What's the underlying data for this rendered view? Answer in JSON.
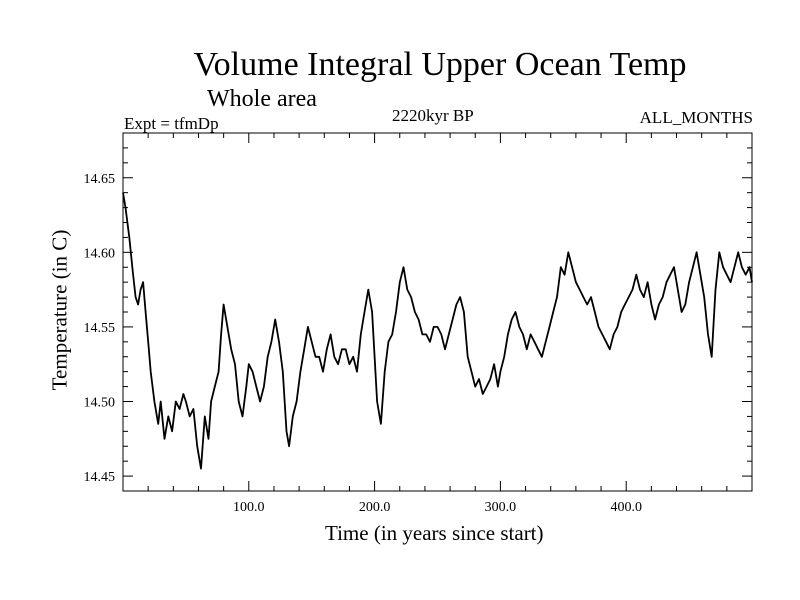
{
  "chart_data": {
    "type": "line",
    "title": "Volume Integral Upper Ocean Temp",
    "subtitle": "Whole area",
    "left_note": "Expt = tfmDp",
    "center_note": "2220kyr BP",
    "right_note": "ALL_MONTHS",
    "xlabel": "Time (in years since start)",
    "ylabel": "Temperature (in C)",
    "xlim": [
      0,
      500
    ],
    "ylim": [
      14.44,
      14.68
    ],
    "x_tick_labels": [
      "100.0",
      "200.0",
      "300.0",
      "400.0"
    ],
    "y_tick_labels": [
      "14.45",
      "14.50",
      "14.55",
      "14.60",
      "14.65"
    ],
    "series": [
      {
        "name": "Temperature",
        "x": [
          0,
          2,
          5,
          8,
          10,
          12,
          14,
          16,
          18,
          20,
          22,
          25,
          28,
          30,
          33,
          36,
          39,
          42,
          45,
          48,
          50,
          53,
          56,
          59,
          62,
          65,
          68,
          70,
          73,
          76,
          78,
          80,
          83,
          86,
          89,
          92,
          95,
          98,
          100,
          103,
          106,
          109,
          112,
          115,
          118,
          121,
          124,
          127,
          130,
          132,
          135,
          138,
          141,
          144,
          147,
          150,
          153,
          156,
          159,
          162,
          165,
          168,
          171,
          174,
          177,
          180,
          183,
          186,
          189,
          192,
          195,
          198,
          200,
          202,
          205,
          208,
          211,
          214,
          217,
          220,
          223,
          226,
          229,
          232,
          235,
          238,
          241,
          244,
          247,
          250,
          253,
          256,
          259,
          262,
          265,
          268,
          271,
          274,
          277,
          280,
          283,
          286,
          289,
          292,
          295,
          298,
          300,
          303,
          306,
          309,
          312,
          315,
          318,
          321,
          324,
          327,
          330,
          333,
          336,
          339,
          342,
          345,
          348,
          351,
          354,
          357,
          360,
          363,
          366,
          369,
          372,
          375,
          378,
          381,
          384,
          387,
          390,
          393,
          396,
          399,
          402,
          405,
          408,
          411,
          414,
          417,
          420,
          423,
          426,
          429,
          432,
          435,
          438,
          441,
          444,
          447,
          450,
          453,
          456,
          459,
          462,
          465,
          468,
          471,
          474,
          477,
          480,
          483,
          486,
          489,
          492,
          495,
          498,
          500
        ],
        "values": [
          14.64,
          14.63,
          14.61,
          14.585,
          14.57,
          14.565,
          14.575,
          14.58,
          14.56,
          14.54,
          14.52,
          14.5,
          14.485,
          14.5,
          14.475,
          14.49,
          14.48,
          14.5,
          14.495,
          14.505,
          14.5,
          14.49,
          14.495,
          14.47,
          14.455,
          14.49,
          14.475,
          14.5,
          14.51,
          14.52,
          14.545,
          14.565,
          14.55,
          14.535,
          14.525,
          14.5,
          14.49,
          14.51,
          14.525,
          14.52,
          14.51,
          14.5,
          14.51,
          14.53,
          14.54,
          14.555,
          14.54,
          14.52,
          14.48,
          14.47,
          14.49,
          14.5,
          14.52,
          14.535,
          14.55,
          14.54,
          14.53,
          14.53,
          14.52,
          14.535,
          14.545,
          14.53,
          14.525,
          14.535,
          14.535,
          14.525,
          14.53,
          14.52,
          14.545,
          14.56,
          14.575,
          14.56,
          14.53,
          14.5,
          14.485,
          14.52,
          14.54,
          14.545,
          14.56,
          14.58,
          14.59,
          14.575,
          14.57,
          14.56,
          14.555,
          14.545,
          14.545,
          14.54,
          14.55,
          14.55,
          14.545,
          14.535,
          14.545,
          14.555,
          14.565,
          14.57,
          14.56,
          14.53,
          14.52,
          14.51,
          14.515,
          14.505,
          14.51,
          14.515,
          14.525,
          14.51,
          14.52,
          14.53,
          14.545,
          14.555,
          14.56,
          14.55,
          14.545,
          14.535,
          14.545,
          14.54,
          14.535,
          14.53,
          14.54,
          14.55,
          14.56,
          14.57,
          14.59,
          14.585,
          14.6,
          14.59,
          14.58,
          14.575,
          14.57,
          14.565,
          14.57,
          14.56,
          14.55,
          14.545,
          14.54,
          14.535,
          14.545,
          14.55,
          14.56,
          14.565,
          14.57,
          14.575,
          14.585,
          14.575,
          14.57,
          14.58,
          14.565,
          14.555,
          14.565,
          14.57,
          14.58,
          14.585,
          14.59,
          14.575,
          14.56,
          14.565,
          14.58,
          14.59,
          14.6,
          14.585,
          14.57,
          14.545,
          14.53,
          14.575,
          14.6,
          14.59,
          14.585,
          14.58,
          14.59,
          14.6,
          14.59,
          14.585,
          14.59,
          14.58
        ]
      }
    ]
  }
}
